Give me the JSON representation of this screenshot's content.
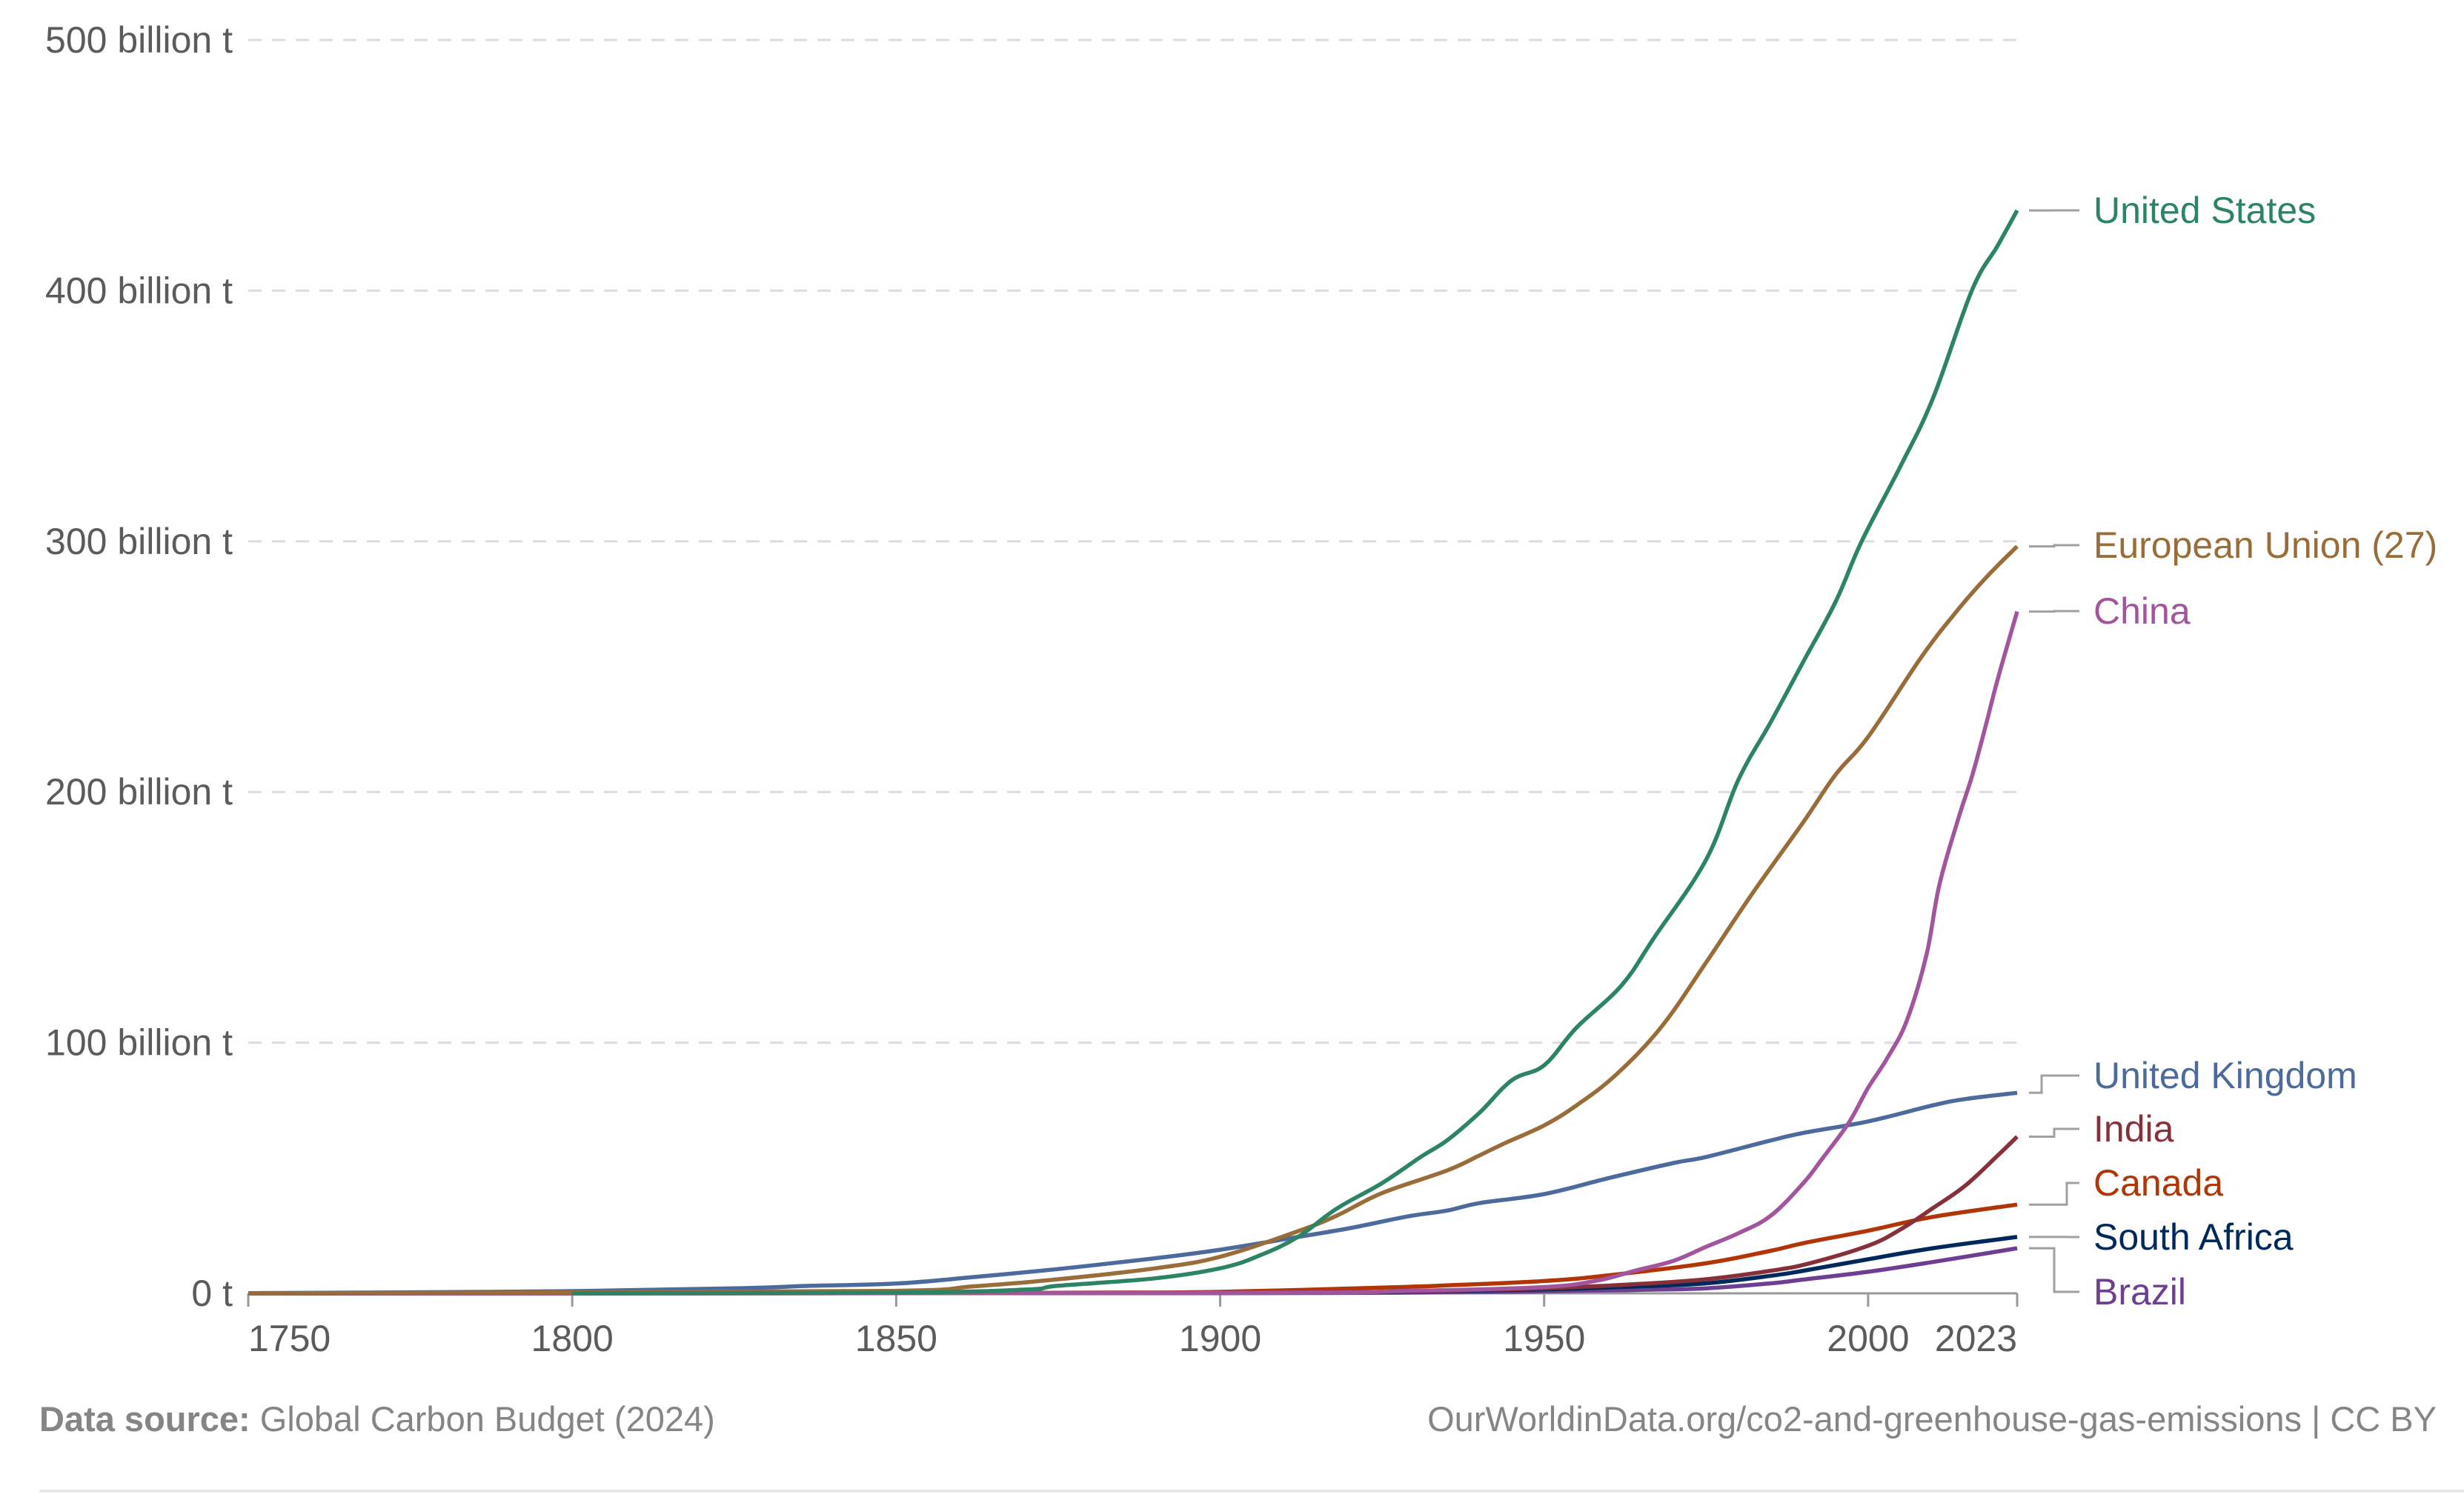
{
  "footer": {
    "source_label": "Data source:",
    "source_value": "Global Carbon Budget (2024)",
    "url_license": "OurWorldinData.org/co2-and-greenhouse-gas-emissions | CC BY"
  },
  "chart_data": {
    "type": "line",
    "title": "",
    "xlabel": "",
    "ylabel": "",
    "xlim": [
      1750,
      2023
    ],
    "ylim": [
      0,
      500
    ],
    "grid": "horizontal dashed",
    "legend": "right (inline labels at line ends)",
    "x_ticks": [
      {
        "value": 1750,
        "label": "1750"
      },
      {
        "value": 1800,
        "label": "1800"
      },
      {
        "value": 1850,
        "label": "1850"
      },
      {
        "value": 1900,
        "label": "1900"
      },
      {
        "value": 1950,
        "label": "1950"
      },
      {
        "value": 2000,
        "label": "2000"
      },
      {
        "value": 2023,
        "label": "2023"
      }
    ],
    "y_ticks": [
      {
        "value": 0,
        "label": "0 t"
      },
      {
        "value": 100,
        "label": "100 billion t"
      },
      {
        "value": 200,
        "label": "200 billion t"
      },
      {
        "value": 300,
        "label": "300 billion t"
      },
      {
        "value": 400,
        "label": "400 billion t"
      },
      {
        "value": 500,
        "label": "500 billion t"
      }
    ],
    "units": "billion tonnes CO2 (cumulative)",
    "series": [
      {
        "name": "United States",
        "color": "#2c8465",
        "label_value": 432,
        "points": [
          [
            1800,
            0
          ],
          [
            1850,
            0.3
          ],
          [
            1870,
            1.5
          ],
          [
            1875,
            3
          ],
          [
            1890,
            6
          ],
          [
            1900,
            10
          ],
          [
            1906,
            15
          ],
          [
            1912,
            22.5
          ],
          [
            1918,
            33.8
          ],
          [
            1925,
            44
          ],
          [
            1931,
            54.5
          ],
          [
            1935,
            61
          ],
          [
            1940,
            72
          ],
          [
            1945,
            85
          ],
          [
            1950,
            91
          ],
          [
            1955,
            106
          ],
          [
            1962,
            123
          ],
          [
            1967,
            142
          ],
          [
            1975,
            173
          ],
          [
            1980,
            205
          ],
          [
            1985,
            228
          ],
          [
            1990,
            252
          ],
          [
            1995,
            276
          ],
          [
            1999,
            300
          ],
          [
            2005,
            330
          ],
          [
            2010,
            357
          ],
          [
            2016,
            400
          ],
          [
            2020,
            418
          ],
          [
            2023,
            432
          ]
        ]
      },
      {
        "name": "European Union (27)",
        "color": "#996d39",
        "label_value": 298,
        "points": [
          [
            1750,
            0
          ],
          [
            1800,
            0.4
          ],
          [
            1850,
            1
          ],
          [
            1862,
            2.8
          ],
          [
            1875,
            5.6
          ],
          [
            1890,
            10
          ],
          [
            1900,
            14.6
          ],
          [
            1912,
            24.8
          ],
          [
            1918,
            31
          ],
          [
            1925,
            40
          ],
          [
            1935,
            49
          ],
          [
            1940,
            55
          ],
          [
            1944,
            60
          ],
          [
            1950,
            67
          ],
          [
            1955,
            75
          ],
          [
            1961,
            87
          ],
          [
            1968,
            106
          ],
          [
            1975,
            132
          ],
          [
            1982,
            159
          ],
          [
            1990,
            188
          ],
          [
            1995,
            207
          ],
          [
            2000,
            222
          ],
          [
            2008,
            253
          ],
          [
            2013,
            270
          ],
          [
            2018,
            285
          ],
          [
            2023,
            298
          ]
        ]
      },
      {
        "name": "China",
        "color": "#a2559c",
        "label_value": 272,
        "points": [
          [
            1750,
            0
          ],
          [
            1900,
            0.2
          ],
          [
            1930,
            1
          ],
          [
            1950,
            2.5
          ],
          [
            1958,
            5
          ],
          [
            1964,
            9
          ],
          [
            1970,
            13
          ],
          [
            1975,
            18.6
          ],
          [
            1980,
            24
          ],
          [
            1985,
            31
          ],
          [
            1990,
            44
          ],
          [
            1993,
            54
          ],
          [
            1997,
            68
          ],
          [
            2000,
            82
          ],
          [
            2003,
            94
          ],
          [
            2006,
            109
          ],
          [
            2009,
            135
          ],
          [
            2011,
            163
          ],
          [
            2014,
            190
          ],
          [
            2016,
            206
          ],
          [
            2018,
            225
          ],
          [
            2020,
            245
          ],
          [
            2023,
            272
          ]
        ]
      },
      {
        "name": "United Kingdom",
        "color": "#4c6a9c",
        "label_value": 80,
        "points": [
          [
            1750,
            0.1
          ],
          [
            1775,
            0.4
          ],
          [
            1800,
            0.9
          ],
          [
            1825,
            2
          ],
          [
            1837,
            3
          ],
          [
            1850,
            3.9
          ],
          [
            1862,
            6.5
          ],
          [
            1875,
            9.7
          ],
          [
            1890,
            14
          ],
          [
            1900,
            17.4
          ],
          [
            1912,
            22.5
          ],
          [
            1920,
            26
          ],
          [
            1929,
            30.7
          ],
          [
            1935,
            33
          ],
          [
            1940,
            36
          ],
          [
            1950,
            39.6
          ],
          [
            1960,
            46
          ],
          [
            1970,
            52
          ],
          [
            1975,
            54.4
          ],
          [
            1985,
            61
          ],
          [
            1990,
            64
          ],
          [
            2000,
            68.6
          ],
          [
            2010,
            75
          ],
          [
            2015,
            77.5
          ],
          [
            2023,
            80
          ]
        ]
      },
      {
        "name": "India",
        "color": "#883039",
        "label_value": 62.5,
        "points": [
          [
            1750,
            0
          ],
          [
            1900,
            0.2
          ],
          [
            1930,
            1
          ],
          [
            1950,
            2
          ],
          [
            1965,
            3.8
          ],
          [
            1975,
            5.6
          ],
          [
            1985,
            9
          ],
          [
            1991,
            12
          ],
          [
            2000,
            19
          ],
          [
            2005,
            25.5
          ],
          [
            2010,
            34
          ],
          [
            2015,
            43
          ],
          [
            2020,
            55
          ],
          [
            2023,
            62.5
          ]
        ]
      },
      {
        "name": "Canada",
        "color": "#b13507",
        "label_value": 35.4,
        "points": [
          [
            1750,
            0
          ],
          [
            1800,
            0
          ],
          [
            1850,
            0.1
          ],
          [
            1880,
            0.3
          ],
          [
            1900,
            0.6
          ],
          [
            1929,
            2.6
          ],
          [
            1935,
            3.2
          ],
          [
            1950,
            4.9
          ],
          [
            1960,
            7.2
          ],
          [
            1975,
            12
          ],
          [
            1985,
            17
          ],
          [
            1990,
            20
          ],
          [
            2000,
            25
          ],
          [
            2010,
            30.5
          ],
          [
            2023,
            35.4
          ]
        ]
      },
      {
        "name": "South Africa",
        "color": "#00295b",
        "label_value": 22.5,
        "points": [
          [
            1750,
            0
          ],
          [
            1900,
            0.2
          ],
          [
            1930,
            0.8
          ],
          [
            1950,
            1.6
          ],
          [
            1965,
            2.8
          ],
          [
            1975,
            4
          ],
          [
            1985,
            7
          ],
          [
            1990,
            9
          ],
          [
            2000,
            13.6
          ],
          [
            2010,
            18
          ],
          [
            2023,
            22.5
          ]
        ]
      },
      {
        "name": "Brazil",
        "color": "#6d3e91",
        "label_value": 18,
        "points": [
          [
            1750,
            0
          ],
          [
            1900,
            0.1
          ],
          [
            1930,
            0.3
          ],
          [
            1950,
            0.8
          ],
          [
            1965,
            1.4
          ],
          [
            1975,
            2
          ],
          [
            1985,
            4
          ],
          [
            1990,
            5.5
          ],
          [
            2000,
            8.6
          ],
          [
            2010,
            12.5
          ],
          [
            2023,
            18
          ]
        ]
      }
    ]
  }
}
